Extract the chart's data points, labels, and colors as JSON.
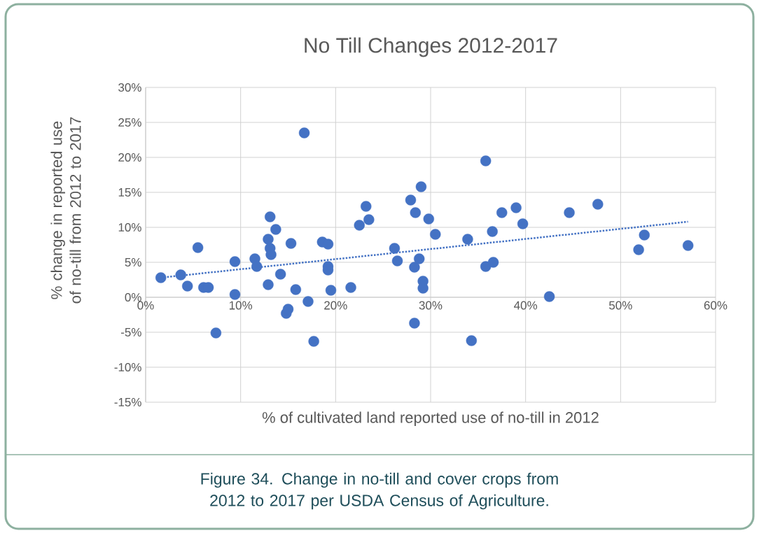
{
  "chart_data": {
    "type": "scatter",
    "title": "No Till Changes 2012-2017",
    "xlabel": "% of cultivated land reported use of no-till in 2012",
    "ylabel": "% change in reported use of no-till from 2012 to 2017",
    "annotations": [
      "Figure 34. Change in no-till and cover crops from 2012 to 2017 per USDA Census of Agriculture."
    ],
    "xlim": [
      0,
      60
    ],
    "ylim": [
      -15,
      30
    ],
    "xticks": [
      {
        "value": 0,
        "label": "0%"
      },
      {
        "value": 10,
        "label": "10%"
      },
      {
        "value": 20,
        "label": "20%"
      },
      {
        "value": 30,
        "label": "30%"
      },
      {
        "value": 40,
        "label": "40%"
      },
      {
        "value": 50,
        "label": "50%"
      },
      {
        "value": 60,
        "label": "60%"
      }
    ],
    "yticks": [
      {
        "value": -15,
        "label": "-15%"
      },
      {
        "value": -10,
        "label": "-10%"
      },
      {
        "value": -5,
        "label": "-5%"
      },
      {
        "value": 0,
        "label": "0%"
      },
      {
        "value": 5,
        "label": "5%"
      },
      {
        "value": 10,
        "label": "10%"
      },
      {
        "value": 15,
        "label": "15%"
      },
      {
        "value": 20,
        "label": "20%"
      },
      {
        "value": 25,
        "label": "25%"
      },
      {
        "value": 30,
        "label": "30%"
      }
    ],
    "grid": true,
    "marker": "circle",
    "series": [
      {
        "color": "#4472c4",
        "x": [
          1.6,
          3.7,
          4.4,
          5.5,
          6.1,
          6.6,
          7.4,
          9.4,
          9.4,
          11.5,
          11.7,
          12.9,
          13.1,
          13.7,
          12.9,
          13.1,
          13.2,
          14.2,
          15.3,
          14.8,
          15.0,
          15.8,
          16.7,
          17.1,
          17.7,
          18.6,
          19.2,
          19.2,
          19.2,
          19.5,
          21.6,
          22.5,
          23.2,
          23.5,
          26.2,
          26.5,
          27.9,
          28.4,
          29.0,
          28.3,
          28.8,
          29.2,
          29.2,
          28.3,
          29.8,
          30.5,
          33.9,
          34.3,
          35.8,
          35.8,
          36.6,
          36.5,
          37.5,
          39.0,
          39.7,
          42.5,
          44.6,
          47.6,
          51.9,
          52.5,
          57.1
        ],
        "values": [
          2.8,
          3.2,
          1.6,
          7.1,
          1.4,
          1.4,
          -5.1,
          5.1,
          0.4,
          5.5,
          4.4,
          1.8,
          11.5,
          9.7,
          8.3,
          7.0,
          6.1,
          3.3,
          7.7,
          -2.3,
          -1.7,
          1.1,
          23.5,
          -0.6,
          -6.3,
          7.9,
          7.6,
          4.4,
          3.9,
          1.0,
          1.4,
          10.3,
          13.0,
          11.1,
          7.0,
          5.2,
          13.9,
          12.1,
          15.8,
          4.3,
          5.5,
          2.3,
          1.3,
          -3.7,
          11.2,
          9.0,
          8.3,
          -6.2,
          19.5,
          4.4,
          5.0,
          9.4,
          12.1,
          12.8,
          10.5,
          0.1,
          12.1,
          13.3,
          6.8,
          8.9,
          7.4
        ]
      },
      {
        "type": "line",
        "color": "#4472c4",
        "line_style": "dotted",
        "marker": "none",
        "x": [
          1.6,
          57.1
        ],
        "values": [
          2.8,
          10.8
        ]
      }
    ]
  }
}
